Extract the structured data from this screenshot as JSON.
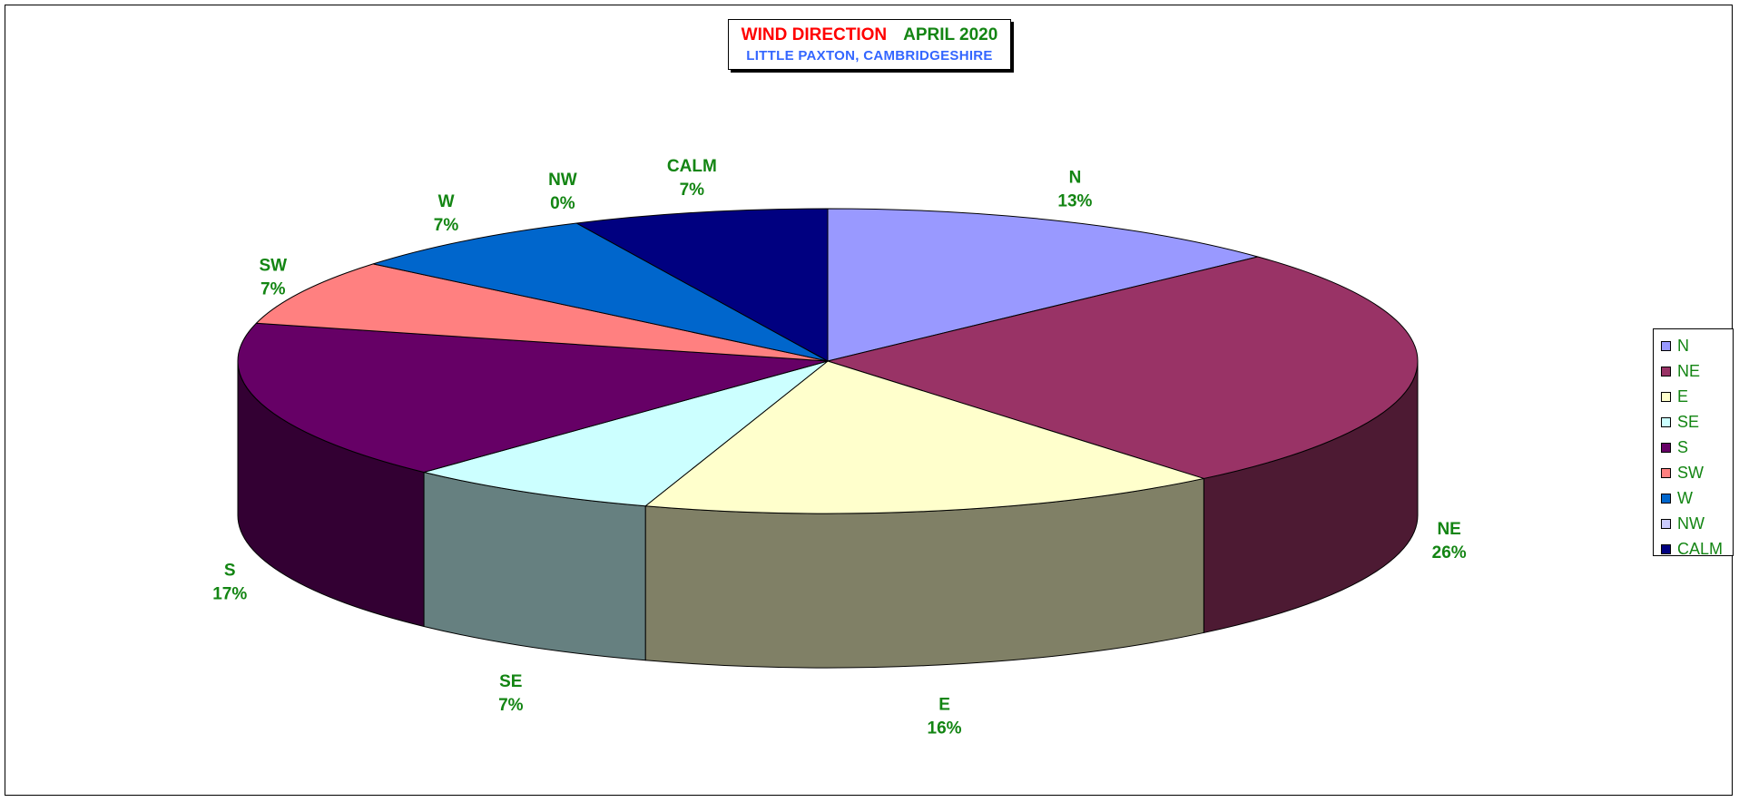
{
  "chart_data": {
    "type": "pie",
    "title": "WIND DIRECTION",
    "title_period": "APRIL 2020",
    "subtitle": "LITTLE PAXTON, CAMBRIDGESHIRE",
    "slices": [
      {
        "label": "N",
        "value": 13,
        "value_label": "13%",
        "color": "#9999ff",
        "side_color": "#6b6bb3"
      },
      {
        "label": "NE",
        "value": 26,
        "value_label": "26%",
        "color": "#993366",
        "side_color": "#4d1a33"
      },
      {
        "label": "E",
        "value": 16,
        "value_label": "16%",
        "color": "#ffffcc",
        "side_color": "#808066"
      },
      {
        "label": "SE",
        "value": 7,
        "value_label": "7%",
        "color": "#ccffff",
        "side_color": "#668080"
      },
      {
        "label": "S",
        "value": 17,
        "value_label": "17%",
        "color": "#660066",
        "side_color": "#330033"
      },
      {
        "label": "SW",
        "value": 7,
        "value_label": "7%",
        "color": "#ff8080",
        "side_color": "#804040"
      },
      {
        "label": "W",
        "value": 7,
        "value_label": "7%",
        "color": "#0066cc",
        "side_color": "#003366"
      },
      {
        "label": "NW",
        "value": 0,
        "value_label": "0%",
        "color": "#ccccff",
        "side_color": "#666680"
      },
      {
        "label": "CALM",
        "value": 7,
        "value_label": "7%",
        "color": "#000080",
        "side_color": "#000040"
      }
    ],
    "legend_position": "right",
    "label_color": "#138513",
    "title_color": "#ff0000",
    "subtitle_color": "#3366ff"
  }
}
